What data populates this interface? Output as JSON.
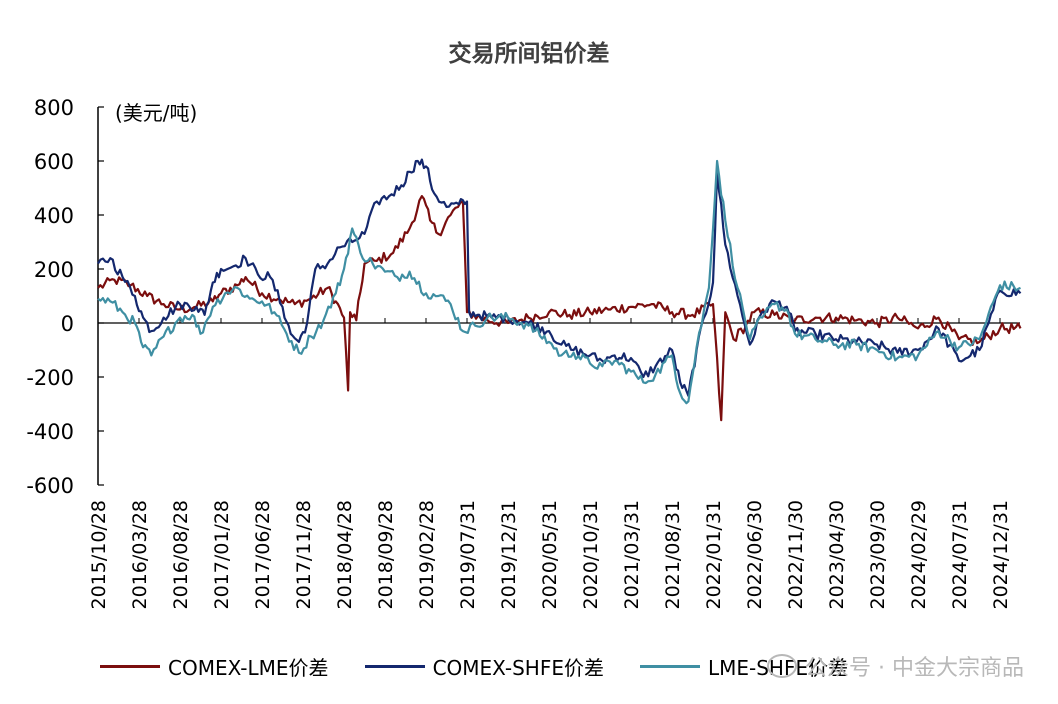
{
  "chart_data": {
    "type": "line",
    "title": "交易所间铝价差",
    "unit_label": "(美元/吨)",
    "ylim": [
      -600,
      800
    ],
    "yticks": [
      800,
      600,
      400,
      200,
      0,
      -200,
      -400,
      -600
    ],
    "x_tick_labels": [
      "2015/10/28",
      "2016/03/28",
      "2016/08/28",
      "2017/01/28",
      "2017/06/28",
      "2017/11/28",
      "2018/04/28",
      "2018/09/28",
      "2019/02/28",
      "2019/07/31",
      "2019/12/31",
      "2020/05/31",
      "2020/10/31",
      "2021/03/31",
      "2021/08/31",
      "2022/01/31",
      "2022/06/30",
      "2022/11/30",
      "2023/04/30",
      "2023/09/30",
      "2024/02/29",
      "2024/07/31",
      "2024/12/31"
    ],
    "x_end_index": 22.5,
    "series": [
      {
        "name": "COMEX-LME价差",
        "color": "#7b0e0e",
        "points": [
          [
            0,
            130
          ],
          [
            0.4,
            160
          ],
          [
            0.8,
            140
          ],
          [
            1.2,
            100
          ],
          [
            1.6,
            70
          ],
          [
            2,
            50
          ],
          [
            2.4,
            60
          ],
          [
            2.8,
            80
          ],
          [
            3,
            110
          ],
          [
            3.4,
            140
          ],
          [
            3.6,
            170
          ],
          [
            4,
            110
          ],
          [
            4.4,
            90
          ],
          [
            4.8,
            70
          ],
          [
            5.2,
            90
          ],
          [
            5.6,
            130
          ],
          [
            5.8,
            80
          ],
          [
            6,
            20
          ],
          [
            6.1,
            -250
          ],
          [
            6.15,
            40
          ],
          [
            6.3,
            10
          ],
          [
            6.5,
            220
          ],
          [
            6.8,
            230
          ],
          [
            7.2,
            260
          ],
          [
            7.6,
            350
          ],
          [
            7.9,
            470
          ],
          [
            8.1,
            380
          ],
          [
            8.3,
            330
          ],
          [
            8.6,
            400
          ],
          [
            8.9,
            450
          ],
          [
            9,
            40
          ],
          [
            9.5,
            10
          ],
          [
            10,
            0
          ],
          [
            10.5,
            20
          ],
          [
            11,
            40
          ],
          [
            11.5,
            30
          ],
          [
            12,
            40
          ],
          [
            12.5,
            50
          ],
          [
            13,
            60
          ],
          [
            13.5,
            70
          ],
          [
            14,
            40
          ],
          [
            14.5,
            30
          ],
          [
            15,
            70
          ],
          [
            15.2,
            -360
          ],
          [
            15.3,
            40
          ],
          [
            15.5,
            -60
          ],
          [
            15.8,
            -10
          ],
          [
            16,
            40
          ],
          [
            16.5,
            30
          ],
          [
            17,
            10
          ],
          [
            17.5,
            20
          ],
          [
            18,
            20
          ],
          [
            18.5,
            10
          ],
          [
            19,
            0
          ],
          [
            19.5,
            20
          ],
          [
            20,
            -20
          ],
          [
            20.5,
            20
          ],
          [
            21,
            -60
          ],
          [
            21.5,
            -70
          ],
          [
            22,
            -20
          ],
          [
            22.5,
            -20
          ]
        ]
      },
      {
        "name": "COMEX-SHFE价差",
        "color": "#14286e",
        "points": [
          [
            0,
            220
          ],
          [
            0.3,
            240
          ],
          [
            0.6,
            170
          ],
          [
            0.9,
            100
          ],
          [
            1.1,
            20
          ],
          [
            1.3,
            -30
          ],
          [
            1.6,
            20
          ],
          [
            2,
            70
          ],
          [
            2.4,
            60
          ],
          [
            2.6,
            30
          ],
          [
            2.8,
            150
          ],
          [
            3,
            200
          ],
          [
            3.3,
            210
          ],
          [
            3.6,
            240
          ],
          [
            3.9,
            180
          ],
          [
            4.2,
            170
          ],
          [
            4.5,
            60
          ],
          [
            4.7,
            -40
          ],
          [
            4.9,
            -70
          ],
          [
            5.1,
            0
          ],
          [
            5.3,
            200
          ],
          [
            5.6,
            220
          ],
          [
            5.9,
            280
          ],
          [
            6.2,
            300
          ],
          [
            6.5,
            330
          ],
          [
            6.8,
            450
          ],
          [
            7.1,
            470
          ],
          [
            7.4,
            510
          ],
          [
            7.6,
            560
          ],
          [
            7.8,
            600
          ],
          [
            8,
            580
          ],
          [
            8.2,
            480
          ],
          [
            8.5,
            430
          ],
          [
            8.8,
            440
          ],
          [
            9,
            450
          ],
          [
            9.05,
            40
          ],
          [
            9.3,
            30
          ],
          [
            9.6,
            20
          ],
          [
            10,
            20
          ],
          [
            10.5,
            0
          ],
          [
            11,
            -30
          ],
          [
            11.3,
            -80
          ],
          [
            11.6,
            -100
          ],
          [
            12,
            -120
          ],
          [
            12.3,
            -140
          ],
          [
            12.6,
            -120
          ],
          [
            13,
            -130
          ],
          [
            13.3,
            -200
          ],
          [
            13.6,
            -160
          ],
          [
            14,
            -100
          ],
          [
            14.2,
            -220
          ],
          [
            14.4,
            -270
          ],
          [
            14.6,
            -100
          ],
          [
            15,
            150
          ],
          [
            15.1,
            560
          ],
          [
            15.3,
            290
          ],
          [
            15.6,
            100
          ],
          [
            15.9,
            -80
          ],
          [
            16.2,
            40
          ],
          [
            16.5,
            80
          ],
          [
            16.8,
            60
          ],
          [
            17,
            -30
          ],
          [
            17.5,
            -40
          ],
          [
            18,
            -60
          ],
          [
            18.5,
            -70
          ],
          [
            19,
            -80
          ],
          [
            19.5,
            -110
          ],
          [
            20,
            -100
          ],
          [
            20.5,
            -20
          ],
          [
            21,
            -140
          ],
          [
            21.5,
            -100
          ],
          [
            22,
            120
          ],
          [
            22.5,
            110
          ]
        ]
      },
      {
        "name": "LME-SHFE价差",
        "color": "#3f8fa3",
        "points": [
          [
            0,
            90
          ],
          [
            0.3,
            80
          ],
          [
            0.6,
            40
          ],
          [
            0.9,
            0
          ],
          [
            1.1,
            -90
          ],
          [
            1.3,
            -120
          ],
          [
            1.6,
            -50
          ],
          [
            2,
            20
          ],
          [
            2.3,
            30
          ],
          [
            2.5,
            -40
          ],
          [
            2.8,
            60
          ],
          [
            3.1,
            110
          ],
          [
            3.4,
            130
          ],
          [
            3.7,
            90
          ],
          [
            4,
            80
          ],
          [
            4.3,
            40
          ],
          [
            4.6,
            -40
          ],
          [
            4.9,
            -110
          ],
          [
            5.2,
            -50
          ],
          [
            5.5,
            10
          ],
          [
            5.8,
            110
          ],
          [
            6,
            200
          ],
          [
            6.2,
            350
          ],
          [
            6.4,
            260
          ],
          [
            6.7,
            220
          ],
          [
            7,
            190
          ],
          [
            7.3,
            170
          ],
          [
            7.6,
            190
          ],
          [
            8,
            110
          ],
          [
            8.3,
            100
          ],
          [
            8.6,
            70
          ],
          [
            8.9,
            -30
          ],
          [
            9.2,
            -10
          ],
          [
            9.5,
            20
          ],
          [
            10,
            20
          ],
          [
            10.5,
            -10
          ],
          [
            11,
            -70
          ],
          [
            11.3,
            -120
          ],
          [
            11.6,
            -110
          ],
          [
            12,
            -150
          ],
          [
            12.3,
            -160
          ],
          [
            12.6,
            -140
          ],
          [
            13,
            -180
          ],
          [
            13.3,
            -220
          ],
          [
            13.6,
            -190
          ],
          [
            14,
            -120
          ],
          [
            14.2,
            -260
          ],
          [
            14.4,
            -290
          ],
          [
            14.6,
            -90
          ],
          [
            14.9,
            130
          ],
          [
            15.1,
            600
          ],
          [
            15.3,
            380
          ],
          [
            15.6,
            130
          ],
          [
            15.9,
            -60
          ],
          [
            16.2,
            20
          ],
          [
            16.5,
            70
          ],
          [
            16.8,
            50
          ],
          [
            17,
            -40
          ],
          [
            17.5,
            -60
          ],
          [
            18,
            -80
          ],
          [
            18.5,
            -80
          ],
          [
            19,
            -100
          ],
          [
            19.5,
            -130
          ],
          [
            20,
            -120
          ],
          [
            20.5,
            -30
          ],
          [
            21,
            -90
          ],
          [
            21.5,
            -60
          ],
          [
            22,
            140
          ],
          [
            22.5,
            130
          ]
        ]
      }
    ]
  },
  "watermark": "公众号 · 中金大宗商品"
}
